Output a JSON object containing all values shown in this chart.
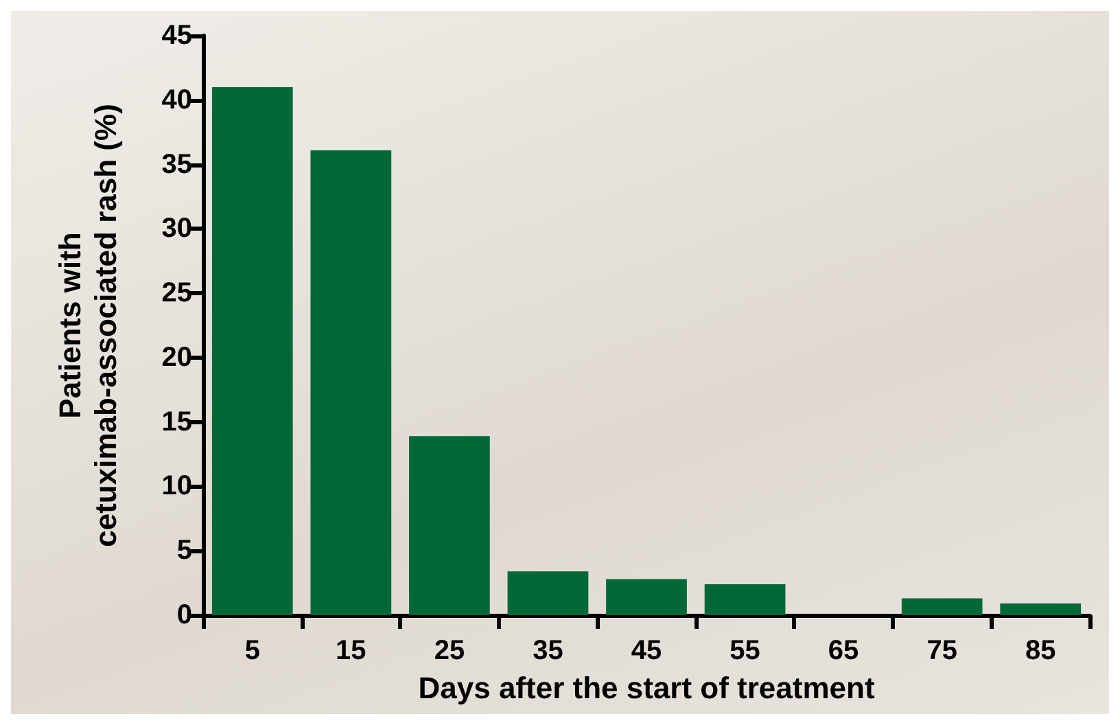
{
  "chart_data": {
    "type": "bar",
    "xlabel": "Days after the start of treatment",
    "ylabel": "Patients with\ncetuximab-associated rash (%)",
    "categories": [
      "5",
      "15",
      "25",
      "35",
      "45",
      "55",
      "65",
      "75",
      "85"
    ],
    "values": [
      41,
      36.1,
      13.9,
      3.4,
      2.8,
      2.4,
      0,
      1.3,
      0.9
    ],
    "color": "#006837",
    "ylim": [
      0,
      45
    ],
    "yticks": [
      0,
      5,
      10,
      15,
      20,
      25,
      30,
      35,
      40,
      45
    ],
    "grid": false
  }
}
